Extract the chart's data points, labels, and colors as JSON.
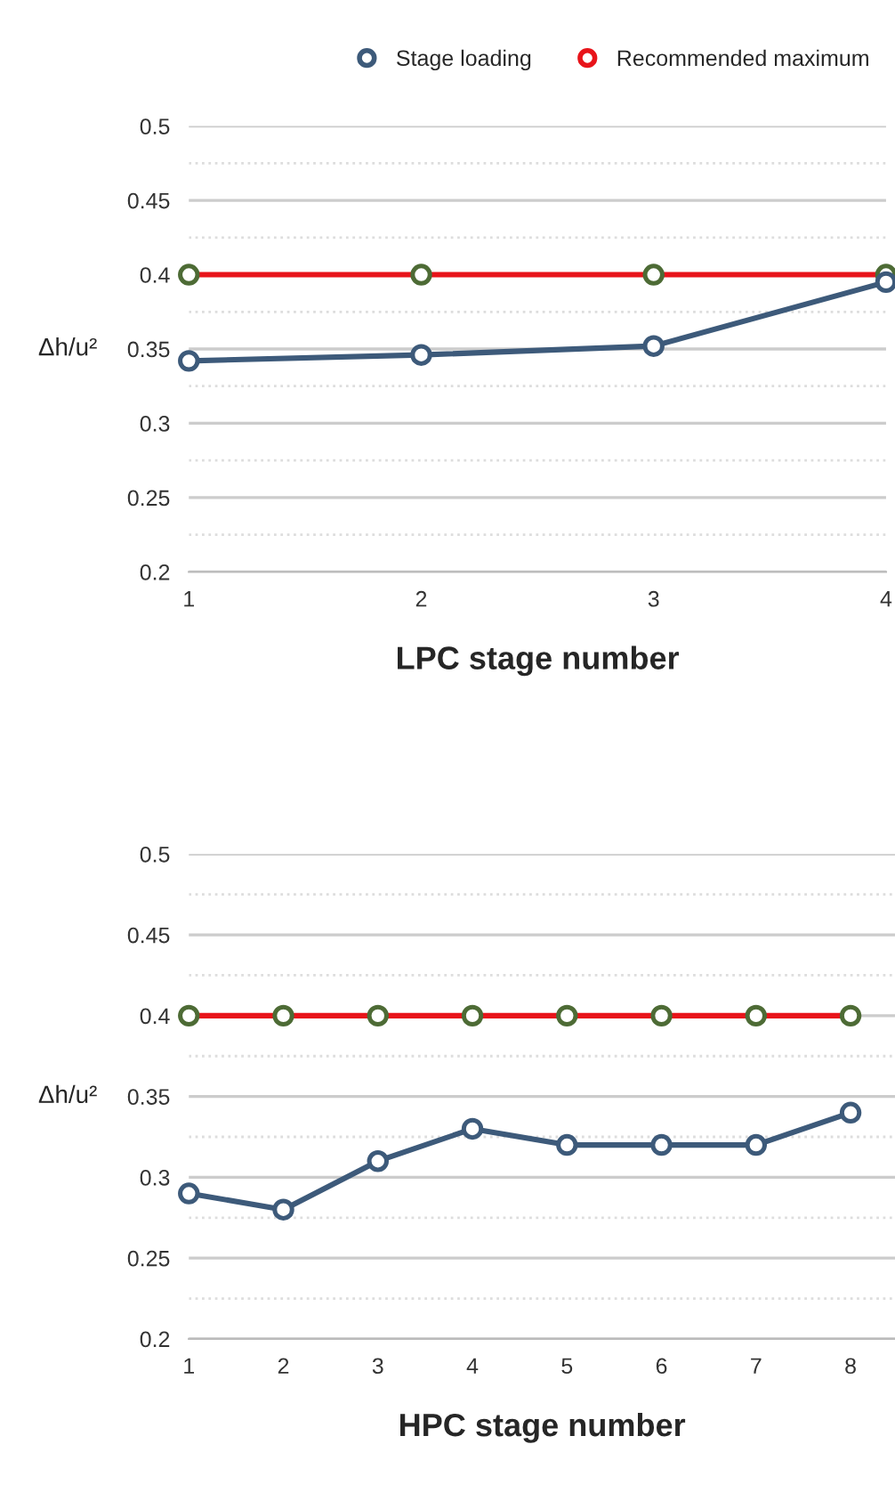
{
  "chart_data": [
    {
      "type": "line",
      "xlabel": "LPC stage number",
      "ylabel": "Δh/u²",
      "x": [
        1,
        2,
        3,
        4
      ],
      "xlim": [
        1,
        4
      ],
      "xticks": [
        1,
        2,
        3,
        4
      ],
      "ylim": [
        0.2,
        0.5
      ],
      "yticks": [
        0.2,
        {
          "value": 0.225,
          "label": null
        },
        0.25,
        {
          "value": 0.275,
          "label": null
        },
        0.3,
        {
          "value": 0.325,
          "label": null
        },
        0.35,
        {
          "value": 0.375,
          "label": null
        },
        0.4,
        {
          "value": 0.425,
          "label": null
        },
        0.45,
        {
          "value": 0.475,
          "label": null
        },
        0.5
      ],
      "grid": "y",
      "marker": "circle",
      "line_style": "solid",
      "legend": "top",
      "series": [
        {
          "name": "Stage loading",
          "color": "#3d5a7a",
          "values": [
            0.342,
            0.346,
            0.352,
            0.395
          ]
        },
        {
          "name": "Recommended maximum",
          "color": "#e8141a",
          "colors": [
            "#4d6b35",
            "#4d6b35",
            "#4d6b35",
            "#4d6b35"
          ],
          "values": [
            0.4,
            0.4,
            0.4,
            0.4
          ]
        }
      ]
    },
    {
      "type": "line",
      "xlabel": "HPC stage number",
      "ylabel": "Δh/u²",
      "x": [
        1,
        2,
        3,
        4,
        5,
        6,
        7,
        8
      ],
      "xlim": [
        1,
        8.47
      ],
      "xticks": [
        1,
        2,
        3,
        4,
        5,
        6,
        7,
        8
      ],
      "ylim": [
        0.2,
        0.5
      ],
      "yticks": [
        0.2,
        {
          "value": 0.225,
          "label": null
        },
        0.25,
        {
          "value": 0.275,
          "label": null
        },
        0.3,
        {
          "value": 0.325,
          "label": null
        },
        0.35,
        {
          "value": 0.375,
          "label": null
        },
        0.4,
        {
          "value": 0.425,
          "label": null
        },
        0.45,
        {
          "value": 0.475,
          "label": null
        },
        0.5
      ],
      "grid": "y",
      "marker": "circle",
      "line_style": "solid",
      "series": [
        {
          "color": "#3d5a7a",
          "values": [
            0.29,
            0.28,
            0.31,
            0.33,
            0.32,
            0.32,
            0.32,
            0.34
          ]
        },
        {
          "color": "#e8141a",
          "colors": [
            "#4d6b35",
            "#4d6b35",
            "#4d6b35",
            "#4d6b35",
            "#4d6b35",
            "#4d6b35",
            "#4d6b35",
            "#4d6b35"
          ],
          "values": [
            0.4,
            0.4,
            0.4,
            0.4,
            0.4,
            0.4,
            0.4,
            0.4
          ]
        }
      ]
    }
  ]
}
